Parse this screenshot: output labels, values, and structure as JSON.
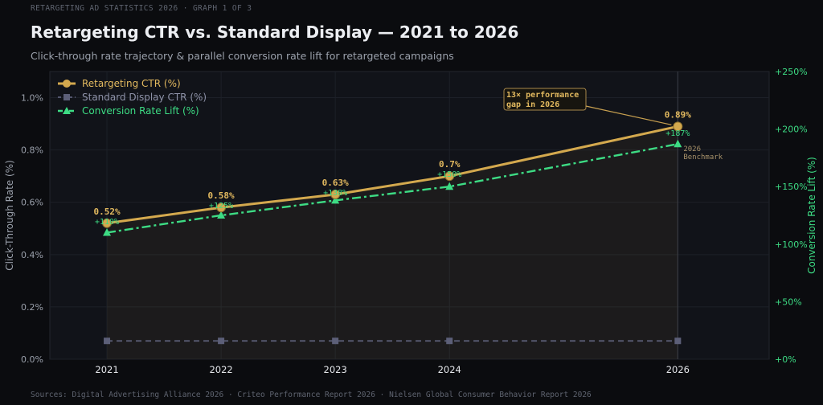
{
  "header": {
    "kicker": "RETARGETING AD STATISTICS 2026  ·  GRAPH 1 OF 3",
    "title": "Retargeting CTR vs. Standard Display — 2021 to 2026",
    "subtitle": "Click-through rate trajectory & parallel conversion rate lift for retargeted campaigns"
  },
  "footer": {
    "sources": "Sources: Digital Advertising Alliance 2026 · Criteo Performance Report 2026 · Nielsen Global Consumer Behavior Report 2026"
  },
  "chart_data": {
    "type": "line",
    "x": [
      2021,
      2022,
      2023,
      2024,
      2026
    ],
    "xlim": [
      2020.5,
      2026.8
    ],
    "x_tick_labels": [
      "2021",
      "2022",
      "2023",
      "2024",
      "2026"
    ],
    "ylabel_left": "Click-Through Rate (%)",
    "ylabel_right": "Conversion Rate Lift (%)",
    "ylim_left": [
      0,
      1.1
    ],
    "ylim_right": [
      0,
      250
    ],
    "y_ticks_left": [
      0.0,
      0.2,
      0.4,
      0.6,
      0.8,
      1.0
    ],
    "y_tick_labels_left": [
      "0.0%",
      "0.2%",
      "0.4%",
      "0.6%",
      "0.8%",
      "1.0%"
    ],
    "y_ticks_right": [
      0,
      50,
      100,
      150,
      200,
      250
    ],
    "y_tick_labels_right": [
      "+0%",
      "+50%",
      "+100%",
      "+150%",
      "+200%",
      "+250%"
    ],
    "grid": true,
    "legend_position": "top-left",
    "series": [
      {
        "name": "Retargeting CTR (%)",
        "axis": "left",
        "values": [
          0.52,
          0.58,
          0.63,
          0.7,
          0.89
        ],
        "labels": [
          "0.52%",
          "0.58%",
          "0.63%",
          "0.7%",
          "0.89%"
        ],
        "color": "#d4a94e",
        "style": "solid",
        "marker": "circle"
      },
      {
        "name": "Standard Display CTR (%)",
        "axis": "left",
        "values": [
          0.07,
          0.07,
          0.07,
          0.07,
          0.07
        ],
        "color": "#5c5f78",
        "style": "dashed",
        "marker": "square"
      },
      {
        "name": "Conversion Rate Lift (%)",
        "axis": "right",
        "values": [
          110,
          125,
          138,
          150,
          187
        ],
        "labels": [
          "+110%",
          "+125%",
          "+138%",
          "+150%",
          "+187%"
        ],
        "color": "#3ddc84",
        "style": "dashdot",
        "marker": "triangle"
      }
    ],
    "annotations": [
      {
        "text_lines": [
          "13× performance",
          "gap in 2026"
        ],
        "target_year": 2026
      },
      {
        "text_lines": [
          "2026",
          "Benchmark"
        ],
        "year": 2026
      }
    ]
  }
}
